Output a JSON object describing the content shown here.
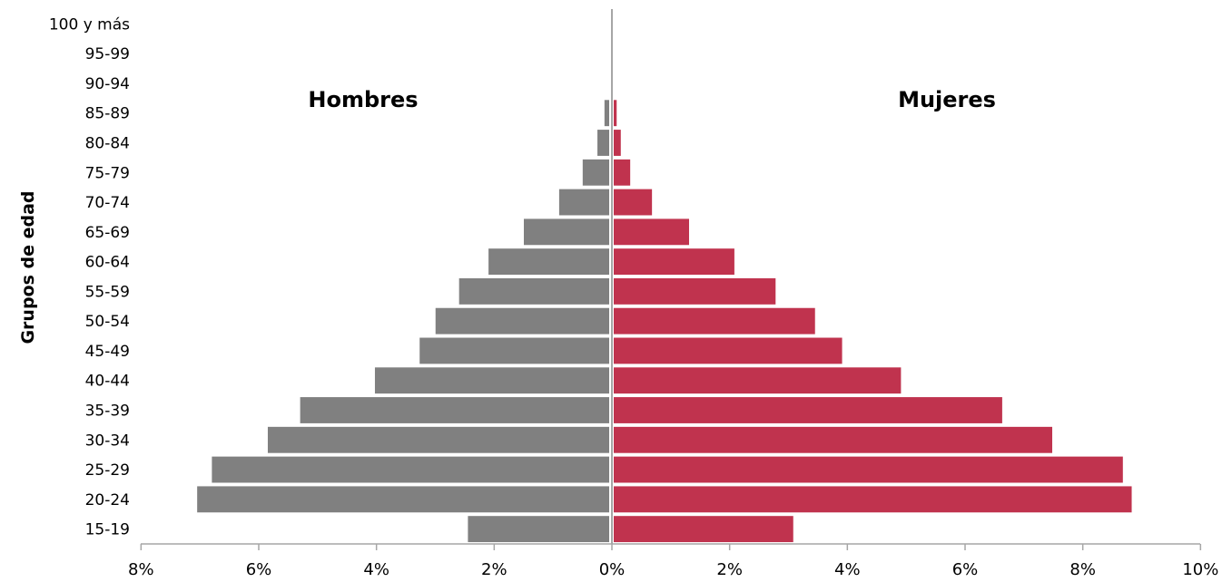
{
  "chart_data": {
    "type": "bar",
    "orientation": "horizontal",
    "layout": "population-pyramid",
    "ylabel": "Grupos de edad",
    "categories": [
      "15-19",
      "20-24",
      "25-29",
      "30-34",
      "35-39",
      "40-44",
      "45-49",
      "50-54",
      "55-59",
      "60-64",
      "65-69",
      "70-74",
      "75-79",
      "80-84",
      "85-89",
      "90-94",
      "95-99",
      "100 y  más"
    ],
    "series": [
      {
        "name": "Hombres",
        "color": "#808080",
        "values": [
          2.4,
          7.0,
          6.75,
          5.8,
          5.25,
          3.98,
          3.22,
          2.95,
          2.55,
          2.05,
          1.45,
          0.85,
          0.45,
          0.2,
          0.08,
          0,
          0,
          0
        ]
      },
      {
        "name": "Mujeres",
        "color": "#C0334E",
        "values": [
          3.05,
          8.8,
          8.65,
          7.45,
          6.6,
          4.88,
          3.88,
          3.42,
          2.75,
          2.05,
          1.28,
          0.65,
          0.28,
          0.12,
          0.05,
          0,
          0,
          0
        ]
      }
    ],
    "xlim": [
      -8,
      10
    ],
    "xticks": [
      -8,
      -6,
      -4,
      -2,
      0,
      2,
      4,
      6,
      8,
      10
    ],
    "xtick_labels": [
      "8%",
      "6%",
      "4%",
      "2%",
      "0%",
      "2%",
      "4%",
      "6%",
      "8%",
      "10%"
    ],
    "grid": false,
    "legend": "none"
  }
}
